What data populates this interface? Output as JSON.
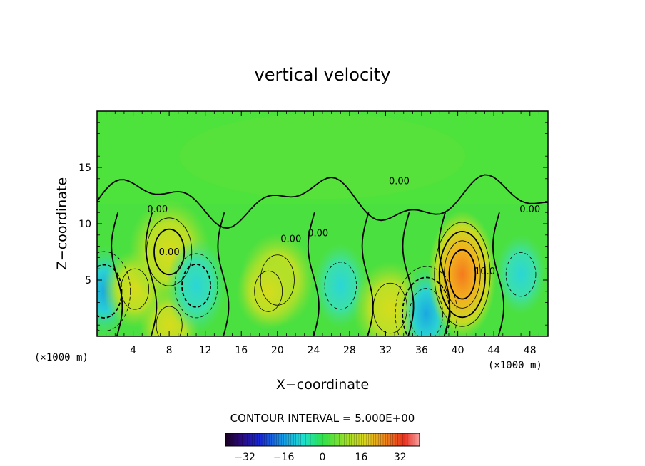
{
  "chart_data": {
    "type": "heatmap",
    "title": "vertical velocity",
    "xlabel": "X−coordinate",
    "ylabel": "Z−coordinate",
    "x_unit_left": "(×1000 m)",
    "x_unit_right": "(×1000 m)",
    "xlim": [
      0,
      50
    ],
    "ylim": [
      0,
      20
    ],
    "x_ticks": [
      4,
      8,
      12,
      16,
      20,
      24,
      28,
      32,
      36,
      40,
      44,
      48
    ],
    "y_ticks": [
      5,
      10,
      15
    ],
    "contour_interval_text": "CONTOUR INTERVAL = 5.000E+00",
    "contour_labels": [
      {
        "text": "0.00",
        "x": 6.7,
        "y": 11.0
      },
      {
        "text": "0.00",
        "x": 8.0,
        "y": 7.2
      },
      {
        "text": "0.00",
        "x": 21.5,
        "y": 8.4
      },
      {
        "text": "0.00",
        "x": 24.5,
        "y": 8.9
      },
      {
        "text": "0.00",
        "x": 33.5,
        "y": 13.5
      },
      {
        "text": "10.0",
        "x": 43.0,
        "y": 5.5
      },
      {
        "text": "0.00",
        "x": 48.0,
        "y": 11.0
      }
    ],
    "cells": [
      {
        "x": 0.8,
        "y": 4.0,
        "v": -14
      },
      {
        "x": 4.2,
        "y": 4.2,
        "v": 6
      },
      {
        "x": 8.0,
        "y": 7.5,
        "v": 11
      },
      {
        "x": 8.0,
        "y": 1.0,
        "v": 5
      },
      {
        "x": 11.0,
        "y": 4.5,
        "v": -10
      },
      {
        "x": 20.0,
        "y": 5.0,
        "v": 9
      },
      {
        "x": 19.0,
        "y": 4.0,
        "v": 6
      },
      {
        "x": 27.0,
        "y": 4.5,
        "v": -8
      },
      {
        "x": 32.5,
        "y": 2.5,
        "v": 9
      },
      {
        "x": 36.5,
        "y": 2.0,
        "v": -16
      },
      {
        "x": 40.5,
        "y": 5.5,
        "v": 22
      },
      {
        "x": 47.0,
        "y": 5.5,
        "v": -7
      },
      {
        "x": 25.0,
        "y": 16.0,
        "v": 1
      }
    ],
    "colorbar": {
      "vmin": -40,
      "vmax": 40,
      "ticks": [
        -32,
        -16,
        0,
        16,
        32
      ],
      "tick_labels": [
        "−32",
        "−16",
        "0",
        "16",
        "32"
      ]
    }
  }
}
